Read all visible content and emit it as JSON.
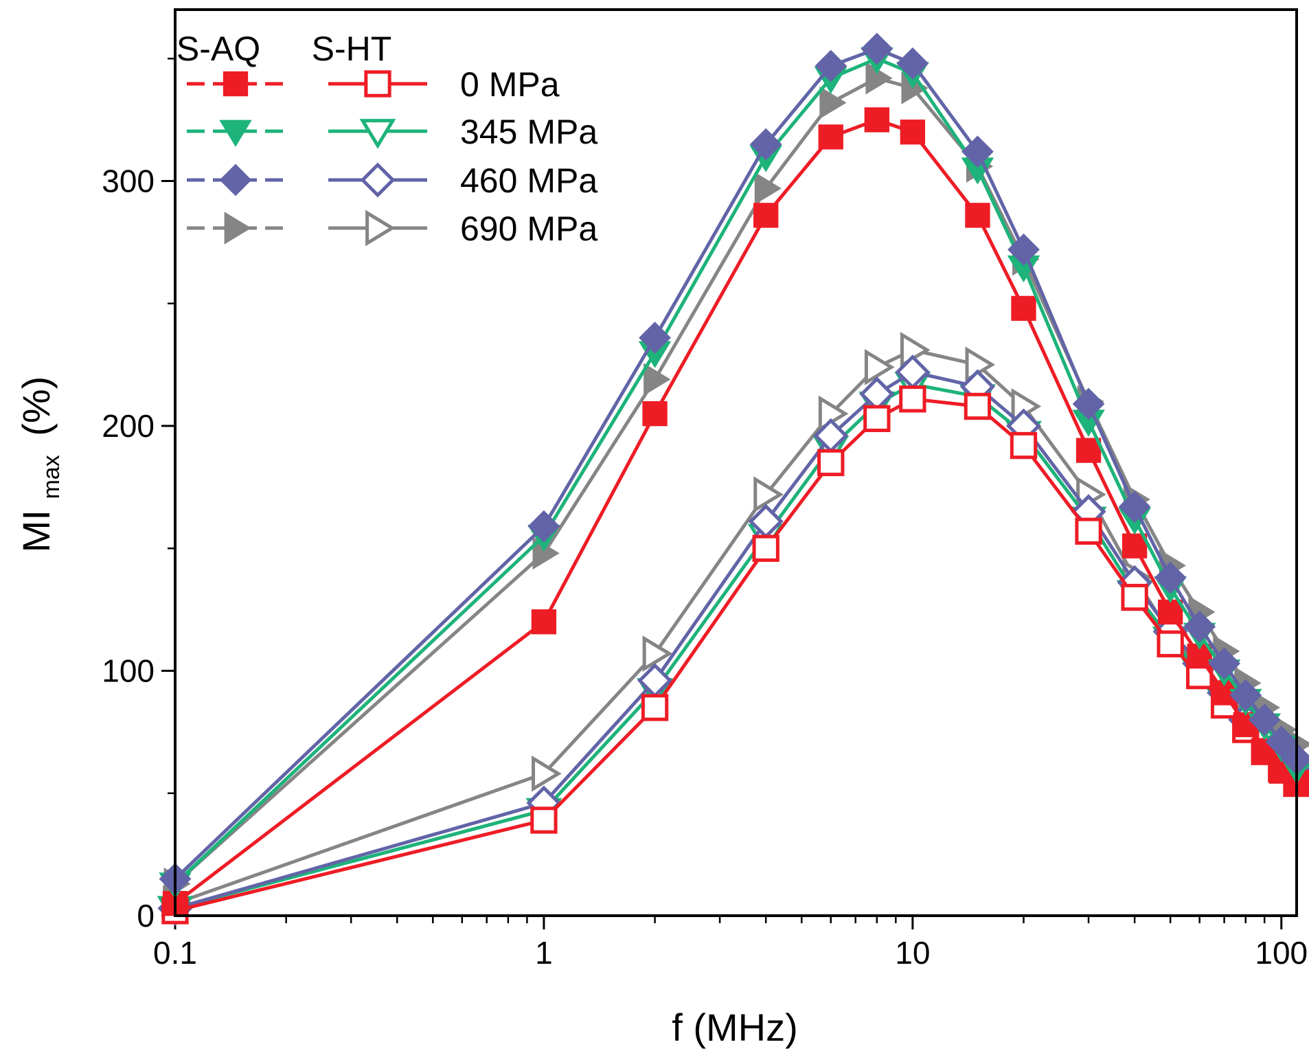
{
  "chart_data": {
    "type": "line",
    "xscale": "log",
    "xlabel": "f (MHz)",
    "ylabel_main": "MI",
    "ylabel_sub": "max",
    "ylabel_unit": "(%)",
    "xlim": [
      0.1,
      110
    ],
    "ylim": [
      0,
      370
    ],
    "xticks": [
      {
        "value": 0.1,
        "label": "0.1"
      },
      {
        "value": 1,
        "label": "1"
      },
      {
        "value": 10,
        "label": "10"
      },
      {
        "value": 100,
        "label": "100"
      }
    ],
    "yticks": [
      {
        "value": 0,
        "label": "0"
      },
      {
        "value": 100,
        "label": "100"
      },
      {
        "value": 200,
        "label": "200"
      },
      {
        "value": 300,
        "label": "300"
      }
    ],
    "x": [
      0.1,
      1,
      2,
      4,
      6,
      8,
      10,
      15,
      20,
      30,
      40,
      50,
      60,
      70,
      80,
      90,
      100,
      110
    ],
    "legend": {
      "column_headers": [
        "S-AQ",
        "S-HT"
      ],
      "rows": [
        {
          "label": "0 MPa",
          "color": "#ee1c25",
          "marker": "square"
        },
        {
          "label": "345 MPa",
          "color": "#1db37a",
          "marker": "triangle-down"
        },
        {
          "label": "460 MPa",
          "color": "#6264a7",
          "marker": "diamond"
        },
        {
          "label": "690 MPa",
          "color": "#858585",
          "marker": "triangle-right"
        }
      ]
    },
    "series": [
      {
        "name": "S-HT 690 MPa",
        "group": "S-HT",
        "color": "#858585",
        "marker": "triangle-right",
        "filled": false,
        "values": [
          5,
          58,
          107,
          172,
          205,
          224,
          231,
          225,
          208,
          172,
          138,
          115,
          101,
          90,
          80,
          72,
          66,
          60
        ]
      },
      {
        "name": "S-HT 345 MPa",
        "group": "S-HT",
        "color": "#1db37a",
        "marker": "triangle-down",
        "filled": false,
        "values": [
          3,
          43,
          92,
          155,
          191,
          209,
          217,
          212,
          197,
          162,
          132,
          113,
          100,
          88,
          78,
          70,
          63,
          57
        ]
      },
      {
        "name": "S-HT 460 MPa",
        "group": "S-HT",
        "color": "#6264a7",
        "marker": "diamond",
        "filled": false,
        "values": [
          3,
          46,
          96,
          161,
          196,
          213,
          222,
          216,
          200,
          165,
          136,
          116,
          103,
          91,
          80,
          72,
          65,
          58
        ]
      },
      {
        "name": "S-HT 0 MPa",
        "group": "S-HT",
        "color": "#ee1c25",
        "marker": "square",
        "filled": false,
        "values": [
          2,
          39,
          85,
          150,
          185,
          203,
          211,
          208,
          192,
          157,
          130,
          111,
          98,
          86,
          76,
          67,
          60,
          54
        ]
      },
      {
        "name": "S-AQ 690 MPa",
        "group": "S-AQ",
        "color": "#858585",
        "marker": "triangle-right",
        "filled": true,
        "values": [
          13,
          148,
          219,
          297,
          332,
          342,
          338,
          306,
          268,
          210,
          170,
          143,
          124,
          108,
          95,
          85,
          76,
          70
        ]
      },
      {
        "name": "S-AQ 0 MPa",
        "group": "S-AQ",
        "color": "#ee1c25",
        "marker": "square",
        "filled": true,
        "values": [
          5,
          120,
          205,
          286,
          318,
          325,
          320,
          286,
          248,
          190,
          151,
          124,
          106,
          91,
          78,
          67,
          59,
          54
        ]
      },
      {
        "name": "S-AQ 345 MPa",
        "group": "S-AQ",
        "color": "#1db37a",
        "marker": "triangle-down",
        "filled": true,
        "values": [
          13,
          155,
          230,
          310,
          342,
          350,
          344,
          305,
          265,
          202,
          162,
          134,
          115,
          100,
          88,
          78,
          69,
          60
        ]
      },
      {
        "name": "S-AQ 460 MPa",
        "group": "S-AQ",
        "color": "#6264a7",
        "marker": "diamond",
        "filled": true,
        "values": [
          15,
          159,
          236,
          315,
          347,
          354,
          348,
          312,
          272,
          209,
          167,
          138,
          118,
          103,
          90,
          80,
          71,
          64
        ]
      }
    ]
  }
}
